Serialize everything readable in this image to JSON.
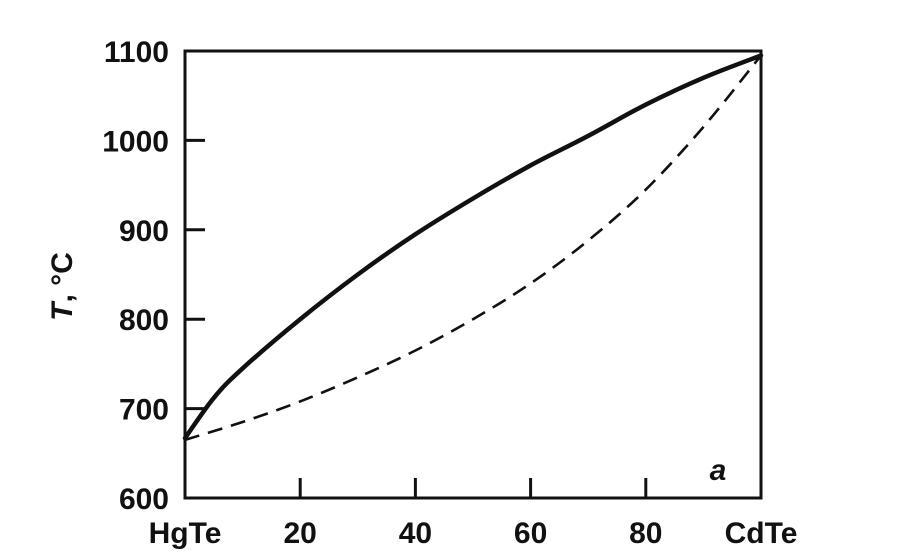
{
  "chart_data": {
    "type": "line",
    "ylabel_italic": "T",
    "ylabel_rest": ", °C",
    "ylim": [
      600,
      1100
    ],
    "xlim": [
      0,
      100
    ],
    "y_ticks": [
      600,
      700,
      800,
      900,
      1000,
      1100
    ],
    "x_ticks": [
      {
        "value": 0,
        "label": "HgTe"
      },
      {
        "value": 20,
        "label": "20"
      },
      {
        "value": 40,
        "label": "40"
      },
      {
        "value": 60,
        "label": "60"
      },
      {
        "value": 80,
        "label": "80"
      },
      {
        "value": 100,
        "label": "CdTe"
      }
    ],
    "annotation": "a",
    "grid": false,
    "series": [
      {
        "style": "solid",
        "x": [
          0,
          5,
          10,
          20,
          30,
          40,
          50,
          60,
          70,
          80,
          90,
          100
        ],
        "y": [
          667,
          712,
          745,
          800,
          850,
          895,
          935,
          972,
          1005,
          1040,
          1070,
          1095
        ]
      },
      {
        "style": "dashed",
        "x": [
          0,
          10,
          20,
          30,
          40,
          50,
          60,
          70,
          80,
          90,
          100
        ],
        "y": [
          665,
          685,
          708,
          735,
          765,
          800,
          840,
          888,
          945,
          1015,
          1095
        ]
      }
    ],
    "colors": {
      "line": "#111111",
      "background": "#ffffff"
    }
  }
}
